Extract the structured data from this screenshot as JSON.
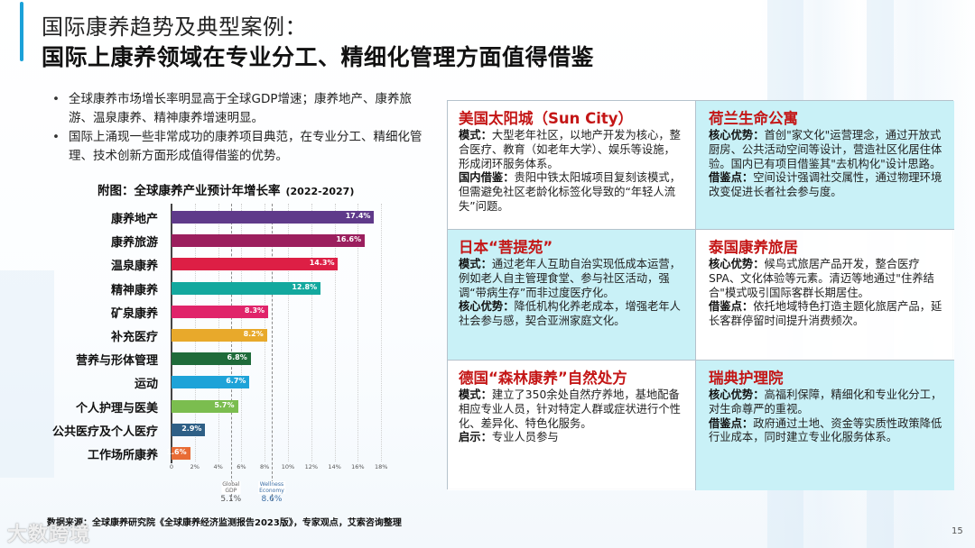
{
  "header": {
    "title_line1": "国际康养趋势及典型案例：",
    "title_line2": "国际上康养领域在专业分工、精细化管理方面值得借鉴"
  },
  "bullets": [
    "全球康养市场增长率明显高于全球GDP增速；康养地产、康养旅游、温泉康养、精神康养增速明显。",
    "国际上涌现一些非常成功的康养项目典范，在专业分工、精细化管理、技术创新方面形成值得借鉴的优势。"
  ],
  "chart_data": {
    "type": "bar",
    "orientation": "horizontal",
    "title": "附图：全球康养产业预计年增长率",
    "subtitle": "(2022-2027)",
    "categories": [
      "康养地产",
      "康养旅游",
      "温泉康养",
      "精神康养",
      "矿泉康养",
      "补充医疗",
      "营养与形体管理",
      "运动",
      "个人护理与医美",
      "公共医疗及个人医疗",
      "工作场所康养"
    ],
    "values": [
      17.4,
      16.6,
      14.3,
      12.8,
      8.3,
      8.2,
      6.8,
      6.7,
      5.7,
      2.9,
      1.6
    ],
    "value_labels": [
      "17.4%",
      "16.6%",
      "14.3%",
      "12.8%",
      "8.3%",
      "8.2%",
      "6.8%",
      "6.7%",
      "5.7%",
      "2.9%",
      "1.6%"
    ],
    "colors": [
      "#5f3a8a",
      "#9b1f5e",
      "#dd1f45",
      "#13a89e",
      "#e0246a",
      "#e8a92b",
      "#1f6b3a",
      "#1ea3d8",
      "#7bbd4f",
      "#2e5f86",
      "#e86c35"
    ],
    "x_ticks": [
      "0",
      "2%",
      "4%",
      "6%",
      "8%",
      "10%",
      "12%",
      "14%",
      "16%",
      "18%"
    ],
    "xlim": [
      0,
      18
    ],
    "xlabel": "",
    "ylabel": "",
    "grid": true,
    "reference_lines": [
      {
        "label_line1": "Global",
        "label_line2": "GDP",
        "value": 5.1,
        "value_label": "5.1%"
      },
      {
        "label_line1": "Wellness",
        "label_line2": "Economy",
        "value": 8.6,
        "value_label": "8.6%"
      }
    ]
  },
  "cases": [
    {
      "title": "美国太阳城（Sun City）",
      "bg": "white",
      "sections": [
        {
          "key": "模式：",
          "text": "大型老年社区，以地产开发为核心，整合医疗、教育（如老年大学）、娱乐等设施，形成闭环服务体系。"
        },
        {
          "key": "国内借鉴：",
          "text": "贵阳中铁太阳城项目复刻该模式，但需避免社区老龄化标签化导致的“年轻人流失”问题。"
        }
      ]
    },
    {
      "title": "荷兰生命公寓",
      "bg": "cyan",
      "sections": [
        {
          "key": "核心优势：",
          "text": "首创\"家文化\"运营理念，通过开放式厨房、公共活动空间等设计，营造社区化居住体验。国内已有项目借鉴其\"去机构化\"设计思路。"
        },
        {
          "key": "借鉴点：",
          "text": "空间设计强调社交属性，通过物理环境改变促进长者社会参与度。"
        }
      ]
    },
    {
      "title": "日本“菩提苑”",
      "bg": "cyan",
      "sections": [
        {
          "key": "模式：",
          "text": "通过老年人互助自治实现低成本运营，例如老人自主管理食堂、参与社区活动，强调“带病生存”而非过度医疗化。"
        },
        {
          "key": "核心优势：",
          "text": "降低机构化养老成本，增强老年人社会参与感，契合亚洲家庭文化。"
        }
      ]
    },
    {
      "title": "泰国康养旅居",
      "bg": "white",
      "sections": [
        {
          "key": "核心优势：",
          "text": "候鸟式旅居产品开发，整合医疗SPA、文化体验等元素。清迈等地通过\"住养结合\"模式吸引国际客群长期居住。"
        },
        {
          "key": "借鉴点：",
          "text": "依托地域特色打造主题化旅居产品，延长客群停留时间提升消费频次。"
        }
      ]
    },
    {
      "title": "德国“森林康养”自然处方",
      "bg": "white",
      "sections": [
        {
          "key": "模式：",
          "text": "建立了350余处自然疗养地，基地配备相应专业人员，针对特定人群或症状进行个性化、差异化、特色化服务。"
        },
        {
          "key": "启示：",
          "text": "专业人员参与"
        }
      ]
    },
    {
      "title": "瑞典护理院",
      "bg": "cyan",
      "sections": [
        {
          "key": "核心优势：",
          "text": "高福利保障，精细化和专业化分工，对生命尊严的重视。"
        },
        {
          "key": "借鉴点：",
          "text": "政府通过土地、资金等实质性政策降低行业成本，同时建立专业化服务体系。"
        }
      ]
    }
  ],
  "footer": {
    "source": "数据来源：全球康养研究院《全球康养经济监测报告2023版》，专家观点，艾索咨询整理",
    "page_number": "15",
    "watermark": "大数跨境"
  }
}
